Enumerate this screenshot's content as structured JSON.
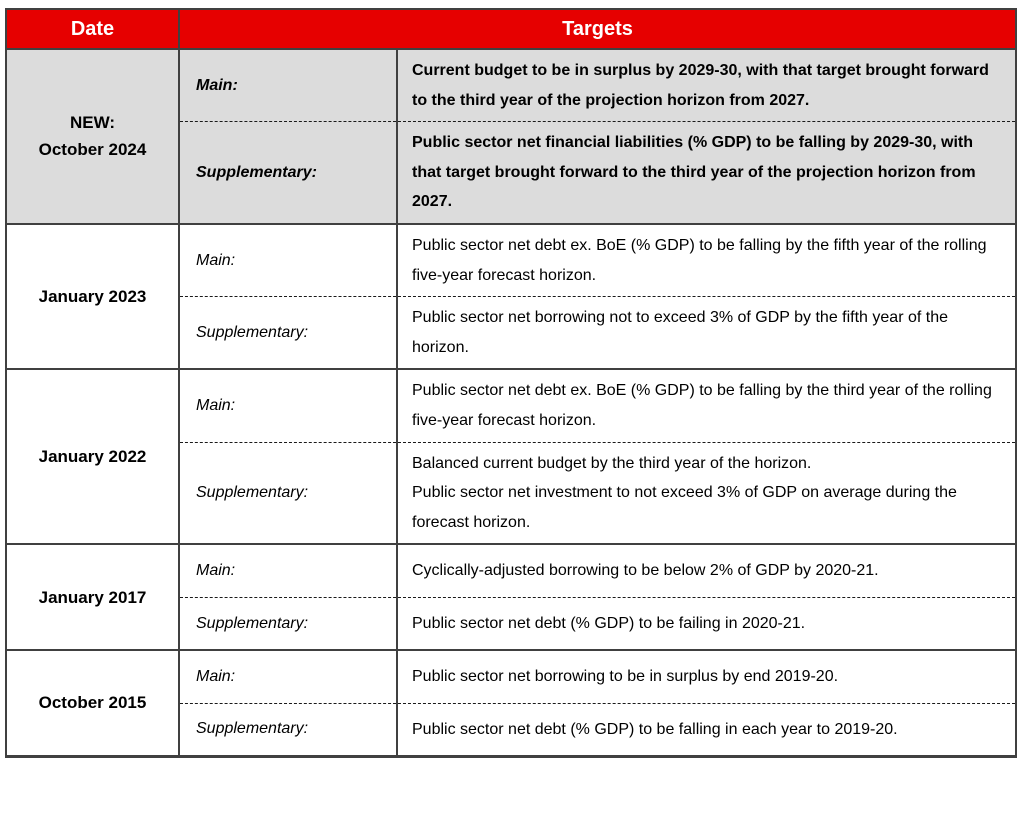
{
  "header": {
    "date": "Date",
    "targets": "Targets"
  },
  "colors": {
    "header_bg": "#e60000",
    "header_text": "#ffffff",
    "highlight_bg": "#dcdcdc",
    "border": "#404040"
  },
  "sections": [
    {
      "date_lines": [
        "NEW:",
        "October 2024"
      ],
      "highlighted": true,
      "rows": [
        {
          "label": "Main:",
          "text": "Current budget to be in surplus by 2029-30, with that target brought forward to the third year of the projection horizon from 2027."
        },
        {
          "label": "Supplementary:",
          "text": "Public sector net financial liabilities (% GDP) to be falling by 2029-30, with that target brought forward to the third year of the projection horizon from 2027."
        }
      ]
    },
    {
      "date_lines": [
        "January 2023"
      ],
      "highlighted": false,
      "rows": [
        {
          "label": "Main:",
          "text": "Public sector net debt ex. BoE (% GDP) to be falling by the fifth year of the rolling five-year forecast horizon."
        },
        {
          "label": "Supplementary:",
          "text": "Public sector net borrowing not to exceed 3% of GDP by the fifth year of the horizon."
        }
      ]
    },
    {
      "date_lines": [
        "January 2022"
      ],
      "highlighted": false,
      "rows": [
        {
          "label": "Main:",
          "text": "Public sector net debt ex. BoE (% GDP) to be falling by the third year of the rolling five-year forecast horizon."
        },
        {
          "label": "Supplementary:",
          "text": "Balanced current budget by the third year of the horizon.\nPublic sector net investment to not exceed 3% of GDP on average during the forecast horizon."
        }
      ]
    },
    {
      "date_lines": [
        "January 2017"
      ],
      "highlighted": false,
      "rows": [
        {
          "label": "Main:",
          "text": "Cyclically-adjusted borrowing to be below 2% of GDP by 2020-21."
        },
        {
          "label": "Supplementary:",
          "text": "Public sector net debt (% GDP) to be failing in 2020-21."
        }
      ]
    },
    {
      "date_lines": [
        "October 2015"
      ],
      "highlighted": false,
      "rows": [
        {
          "label": "Main:",
          "text": "Public sector net borrowing to be in surplus by end 2019-20."
        },
        {
          "label": "Supplementary:",
          "text": "Public sector net debt (% GDP) to be falling in each year to 2019-20."
        }
      ]
    }
  ]
}
